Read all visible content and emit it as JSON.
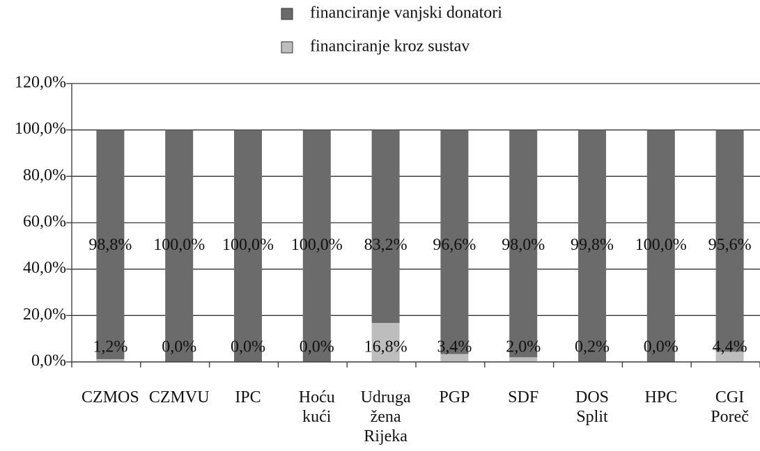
{
  "chart_data": {
    "type": "stacked-bar",
    "categories": [
      "CZMOS",
      "CZMVU",
      "IPC",
      "Hoću kući",
      "Udruga žena Rijeka",
      "PGP",
      "SDF",
      "DOS Split",
      "HPC",
      "CGI Poreč"
    ],
    "series": [
      {
        "name": "financiranje kroz sustav",
        "color": "#bdbdbd",
        "values": [
          1.2,
          0,
          0,
          0,
          16.8,
          3.4,
          2.0,
          0.2,
          0,
          4.4
        ],
        "value_labels": [
          "1,2%",
          "0,0%",
          "0,0%",
          "0,0%",
          "16,8%",
          "3,4%",
          "2,0%",
          "0,2%",
          "0,0%",
          "4,4%"
        ]
      },
      {
        "name": "financiranje vanjski donatori",
        "color": "#6b6b6b",
        "values": [
          98.8,
          100,
          100,
          100,
          83.2,
          96.6,
          98.0,
          99.8,
          100,
          95.6
        ],
        "value_labels": [
          "98,8%",
          "100,0%",
          "100,0%",
          "100,0%",
          "83,2%",
          "96,6%",
          "98,0%",
          "99,8%",
          "100,0%",
          "95,6%"
        ]
      }
    ],
    "ylim": [
      0,
      120
    ],
    "yticks": [
      {
        "value": 0,
        "label": "0,0%"
      },
      {
        "value": 20,
        "label": "20,0%"
      },
      {
        "value": 40,
        "label": "40,0%"
      },
      {
        "value": 60,
        "label": "60,0%"
      },
      {
        "value": 80,
        "label": "80,0%"
      },
      {
        "value": 100,
        "label": "100,0%"
      },
      {
        "value": 120,
        "label": "120,0%"
      }
    ],
    "grid": true,
    "legend": "top"
  }
}
